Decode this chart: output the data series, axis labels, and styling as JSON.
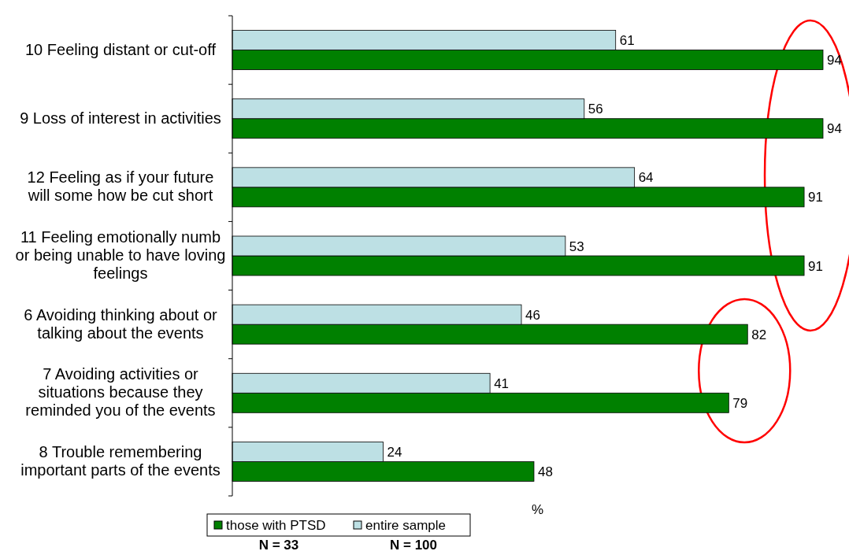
{
  "chart_data": {
    "type": "bar",
    "orientation": "horizontal",
    "xlabel": "%",
    "categories": [
      "10 Feeling distant or cut-off",
      "9 Loss of interest in activities",
      "12 Feeling as if your future will some how be cut short",
      "11 Feeling emotionally numb or being unable to have loving feelings",
      "6 Avoiding thinking about or talking about the events",
      "7 Avoiding activities or situations because they reminded you of the events",
      "8 Trouble remembering important parts of the events"
    ],
    "series": [
      {
        "name": "those with PTSD",
        "color": "#008000",
        "values": [
          94,
          94,
          91,
          91,
          82,
          79,
          48
        ]
      },
      {
        "name": "entire sample",
        "color": "#bde0e4",
        "values": [
          61,
          56,
          64,
          53,
          46,
          41,
          24
        ]
      }
    ],
    "tick_labels": "y",
    "data_labels": true,
    "legend": "bottom",
    "annotations": [
      "N = 33",
      "N = 100"
    ]
  }
}
